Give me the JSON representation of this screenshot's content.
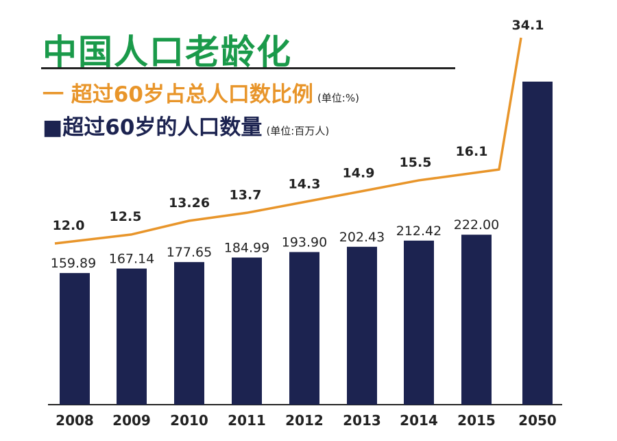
{
  "chart_data": {
    "type": "bar",
    "title": "中国人口老龄化",
    "categories": [
      "2008",
      "2009",
      "2010",
      "2011",
      "2012",
      "2013",
      "2014",
      "2015",
      "2050"
    ],
    "series": [
      {
        "name": "超过60岁的人口数量",
        "unit": "(单位:百万人)",
        "type": "bar",
        "color": "#1c2350",
        "values": [
          159.89,
          167.14,
          177.65,
          184.99,
          193.9,
          202.43,
          212.42,
          222.0,
          470
        ],
        "labels": [
          "159.89",
          "167.14",
          "177.65",
          "184.99",
          "193.90",
          "202.43",
          "212.42",
          "222.00",
          ""
        ]
      },
      {
        "name": "超过60岁占总人口数比例",
        "unit": "(单位:%)",
        "type": "line",
        "color": "#e8952a",
        "values": [
          12.0,
          12.5,
          13.26,
          13.7,
          14.3,
          14.9,
          15.5,
          16.1,
          34.1
        ],
        "labels": [
          "12.0",
          "12.5",
          "13.26",
          "13.7",
          "14.3",
          "14.9",
          "15.5",
          "16.1",
          "34.1"
        ]
      }
    ],
    "legend_placement": "top-left",
    "grid": false
  }
}
